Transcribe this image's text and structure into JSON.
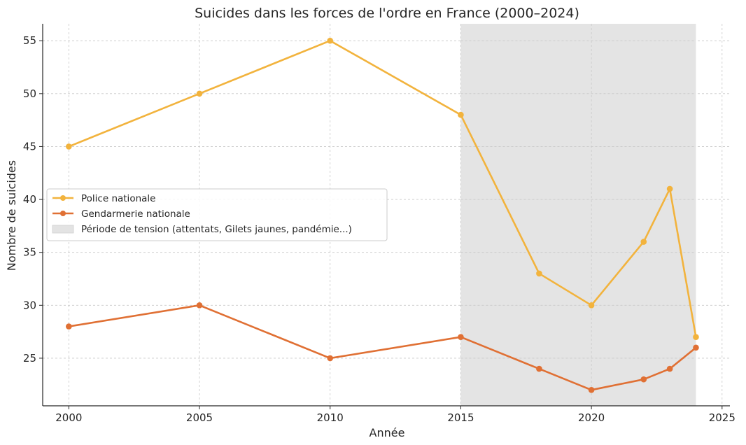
{
  "chart_data": {
    "type": "line",
    "title": "Suicides dans les forces de l'ordre en France (2000–2024)",
    "xlabel": "Année",
    "ylabel": "Nombre de suicides",
    "xlim": [
      1999,
      2025.3
    ],
    "ylim": [
      20.5,
      56.6
    ],
    "x_ticks": [
      2000,
      2005,
      2010,
      2015,
      2020,
      2025
    ],
    "y_ticks": [
      25,
      30,
      35,
      40,
      45,
      50,
      55
    ],
    "grid": true,
    "legend_position": "center-left",
    "series": [
      {
        "name": "Police nationale",
        "color": "#f2b33d",
        "x": [
          2000,
          2005,
          2010,
          2015,
          2018,
          2020,
          2022,
          2023,
          2024
        ],
        "y": [
          45,
          50,
          55,
          48,
          33,
          30,
          36,
          41,
          27
        ]
      },
      {
        "name": "Gendarmerie nationale",
        "color": "#e07034",
        "x": [
          2000,
          2005,
          2010,
          2015,
          2018,
          2020,
          2022,
          2023,
          2024
        ],
        "y": [
          28,
          30,
          25,
          27,
          24,
          22,
          23,
          24,
          26
        ]
      }
    ],
    "shaded_region": {
      "name": "Période de tension (attentats, Gilets jaunes, pandémie...)",
      "x_start": 2015,
      "x_end": 2024,
      "color": "#e3e3e3"
    }
  }
}
